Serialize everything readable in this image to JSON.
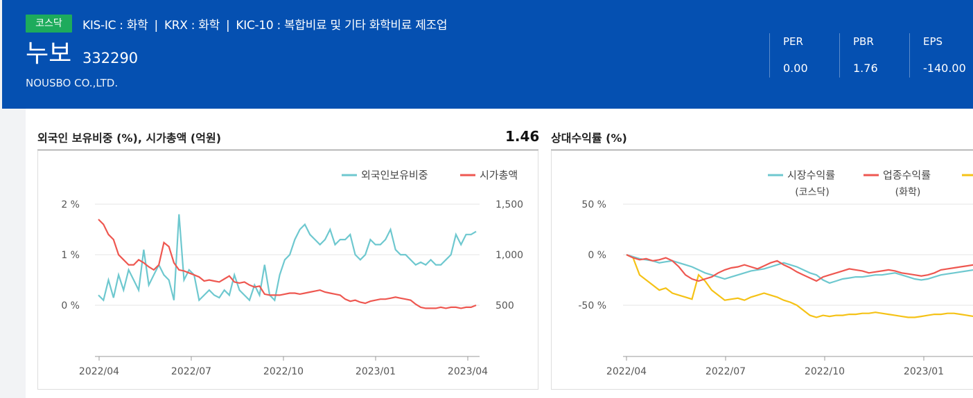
{
  "header": {
    "market_badge": "코스닥",
    "industry": [
      "KIS-IC : 화학",
      "KRX : 화학",
      "KIC-10 : 복합비료 및 기타 화학비료 제조업"
    ],
    "industry_separator": "|",
    "name": "누보",
    "code": "332290",
    "english_name": "NOUSBO CO.,LTD.",
    "metrics": [
      {
        "label": "PER",
        "value": "0.00"
      },
      {
        "label": "PBR",
        "value": "1.76"
      },
      {
        "label": "EPS",
        "value": "-140.00"
      }
    ]
  },
  "left_panel": {
    "title": "외국인 보유비중 (%), 시가총액 (억원)",
    "value": "1.46"
  },
  "right_panel": {
    "title": "상대수익률 (%)"
  },
  "chart_data": [
    {
      "type": "line",
      "title": "외국인 보유비중 (%), 시가총액 (억원)",
      "x_ticks": [
        "2022/04",
        "2022/07",
        "2022/10",
        "2023/01",
        "2023/04"
      ],
      "y_left_ticks": [
        "2 %",
        "1 %",
        "0 %"
      ],
      "y_left_range": [
        0,
        2
      ],
      "y_right_ticks": [
        "1,500",
        "1,000",
        "500"
      ],
      "y_right_range": [
        500,
        1500
      ],
      "legend_position": "top-right",
      "series": [
        {
          "name": "외국인보유비중",
          "axis": "left",
          "color": "#6ec8cf",
          "values": [
            0.2,
            0.1,
            0.5,
            0.15,
            0.6,
            0.3,
            0.7,
            0.5,
            0.3,
            1.1,
            0.4,
            0.6,
            0.8,
            0.6,
            0.5,
            0.1,
            1.8,
            0.5,
            0.7,
            0.6,
            0.1,
            0.2,
            0.3,
            0.2,
            0.15,
            0.3,
            0.2,
            0.6,
            0.3,
            0.2,
            0.1,
            0.4,
            0.2,
            0.8,
            0.2,
            0.1,
            0.6,
            0.9,
            1.0,
            1.3,
            1.5,
            1.6,
            1.4,
            1.3,
            1.2,
            1.3,
            1.5,
            1.2,
            1.3,
            1.3,
            1.4,
            1.0,
            0.9,
            1.0,
            1.3,
            1.2,
            1.2,
            1.3,
            1.5,
            1.1,
            1.0,
            1.0,
            0.9,
            0.8,
            0.85,
            0.8,
            0.9,
            0.8,
            0.8,
            0.9,
            1.0,
            1.4,
            1.2,
            1.4,
            1.4,
            1.46
          ]
        },
        {
          "name": "시가총액",
          "axis": "right",
          "color": "#ee5750",
          "values": [
            1350,
            1300,
            1200,
            1150,
            1000,
            950,
            900,
            900,
            950,
            920,
            880,
            850,
            900,
            1120,
            1080,
            920,
            850,
            840,
            820,
            800,
            780,
            740,
            750,
            740,
            730,
            760,
            790,
            730,
            720,
            730,
            700,
            680,
            690,
            610,
            600,
            600,
            600,
            610,
            620,
            620,
            610,
            620,
            630,
            640,
            650,
            630,
            620,
            610,
            600,
            560,
            540,
            550,
            530,
            520,
            540,
            550,
            560,
            560,
            570,
            580,
            570,
            560,
            550,
            510,
            480,
            470,
            470,
            470,
            480,
            470,
            480,
            480,
            470,
            480,
            480,
            500
          ]
        }
      ]
    },
    {
      "type": "line",
      "title": "상대수익률 (%)",
      "x_ticks": [
        "2022/04",
        "2022/07",
        "2022/10",
        "2023/01"
      ],
      "y_ticks": [
        "50 %",
        "0 %",
        "-50 %"
      ],
      "y_range": [
        -50,
        50
      ],
      "legend_position": "top-right",
      "series": [
        {
          "name": "시장수익률",
          "sub": "(코스닥)",
          "color": "#6ec8cf",
          "values": [
            0,
            -2,
            -4,
            -5,
            -6,
            -8,
            -7,
            -6,
            -8,
            -10,
            -12,
            -15,
            -18,
            -20,
            -22,
            -24,
            -22,
            -20,
            -18,
            -16,
            -15,
            -14,
            -12,
            -10,
            -8,
            -10,
            -12,
            -15,
            -18,
            -20,
            -25,
            -28,
            -26,
            -24,
            -23,
            -22,
            -22,
            -21,
            -20,
            -20,
            -19,
            -18,
            -20,
            -22,
            -24,
            -25,
            -24,
            -22,
            -20,
            -19,
            -18,
            -17,
            -16,
            -15
          ]
        },
        {
          "name": "업종수익률",
          "sub": "(화학)",
          "color": "#ee5750",
          "values": [
            0,
            -3,
            -5,
            -4,
            -6,
            -5,
            -3,
            -6,
            -12,
            -20,
            -24,
            -26,
            -24,
            -22,
            -18,
            -15,
            -13,
            -12,
            -10,
            -12,
            -14,
            -11,
            -8,
            -6,
            -10,
            -13,
            -17,
            -20,
            -23,
            -26,
            -22,
            -20,
            -18,
            -16,
            -14,
            -15,
            -16,
            -18,
            -17,
            -16,
            -15,
            -16,
            -18,
            -19,
            -20,
            -21,
            -20,
            -18,
            -15,
            -14,
            -13,
            -12,
            -11,
            -10
          ]
        },
        {
          "name": "",
          "sub": "",
          "color": "#f5c216",
          "values": [
            0,
            -3,
            -20,
            -25,
            -30,
            -35,
            -33,
            -38,
            -40,
            -42,
            -44,
            -20,
            -26,
            -35,
            -40,
            -45,
            -44,
            -43,
            -45,
            -42,
            -40,
            -38,
            -40,
            -42,
            -45,
            -47,
            -50,
            -55,
            -60,
            -62,
            -60,
            -61,
            -60,
            -60,
            -59,
            -59,
            -58,
            -58,
            -57,
            -58,
            -59,
            -60,
            -61,
            -62,
            -62,
            -61,
            -60,
            -59,
            -59,
            -58,
            -58,
            -59,
            -60,
            -61
          ]
        }
      ]
    }
  ]
}
